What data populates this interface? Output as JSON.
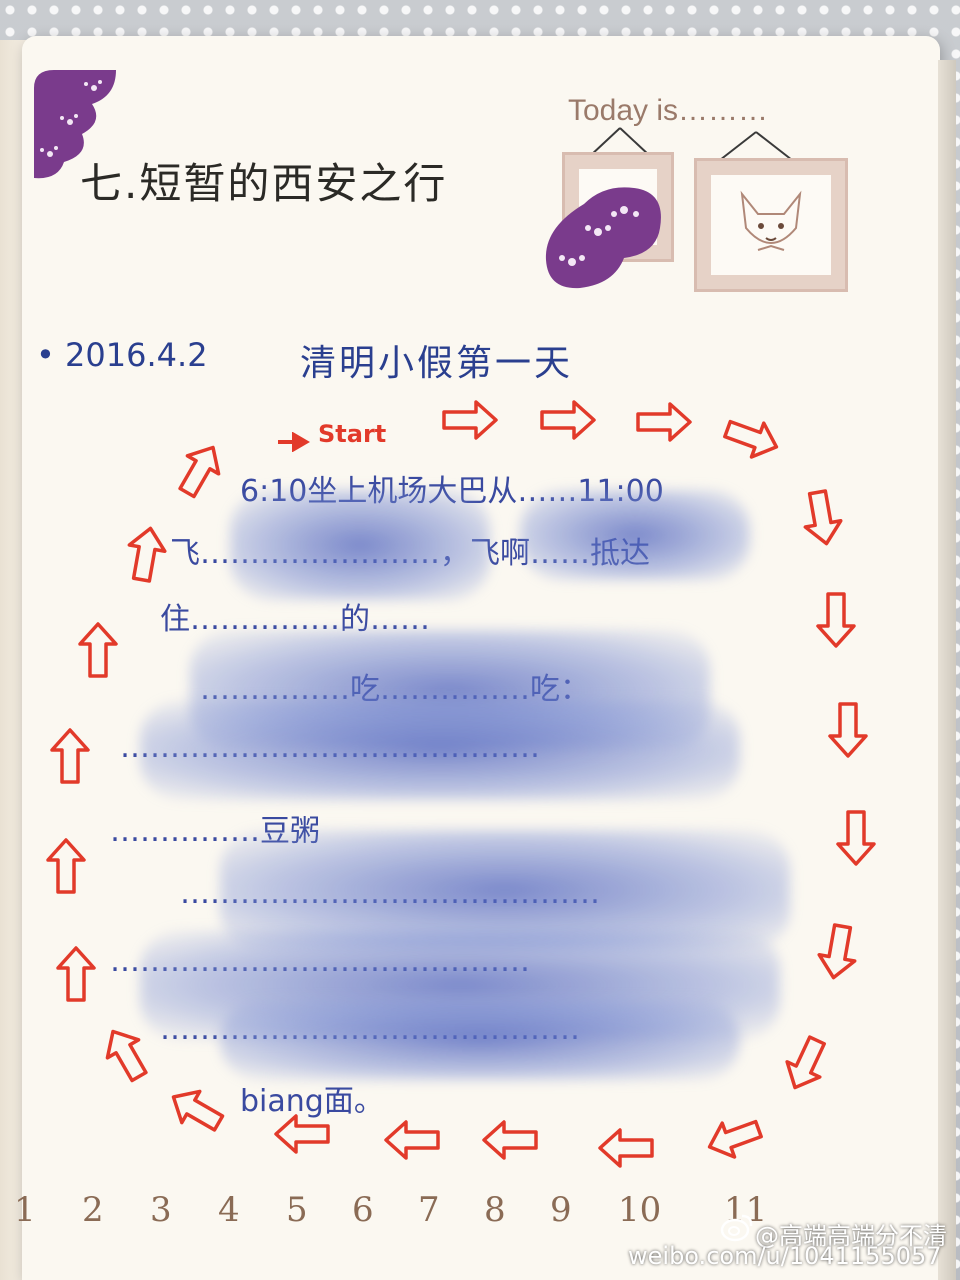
{
  "journal": {
    "title": "七.短暂的西安之行",
    "today_label": "Today is………",
    "date": "• 2016.4.2",
    "heading": "清明小假第一天",
    "start_label": "Start",
    "visible_lines": [
      "6:10坐上机场大巴从……11:00",
      "飞……………………，飞啊……抵达",
      "住……………的……",
      "……………吃……………吃：",
      "……………………………………",
      "……………豆粥",
      "……………………………………",
      "……………………………………",
      "……………………………………",
      "biang面。"
    ]
  },
  "page_numbers": [
    "1",
    "2",
    "3",
    "4",
    "5",
    "6",
    "7",
    "8",
    "9",
    "10",
    "11"
  ],
  "watermark": {
    "handle": "@高端高端分不清",
    "url": "weibo.com/u/1041155057"
  },
  "colors": {
    "ink_blue": "#2a3f8f",
    "arrow_red": "#e23a2a",
    "purple_corner": "#7a3b8c",
    "paper": "#fbf8f1"
  }
}
